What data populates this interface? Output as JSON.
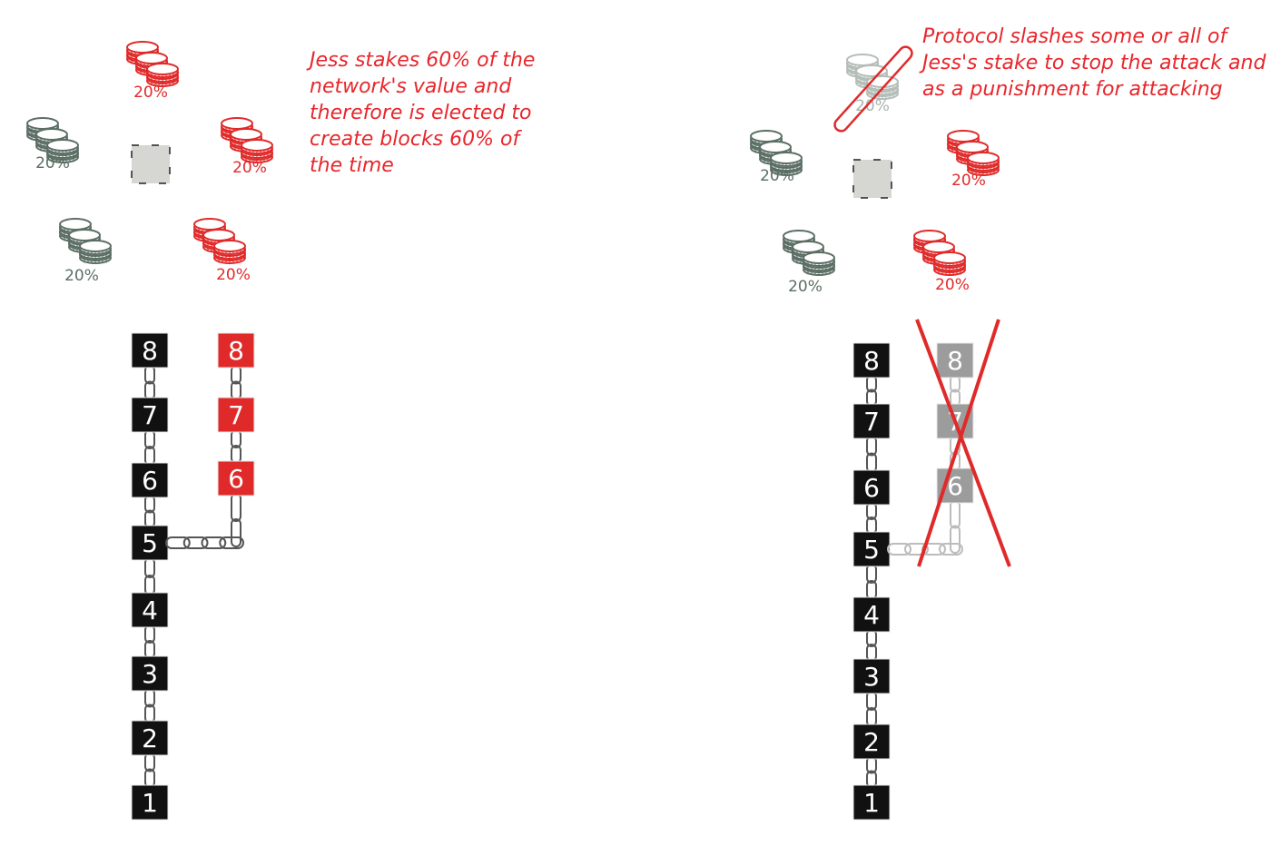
{
  "colors": {
    "attacker": "#e02a2a",
    "honest": "#5b6e64",
    "block": "#111111",
    "slashed": "#9c9c9c",
    "slashed_link": "#bcbcbc",
    "proposer": "#d6d6d2"
  },
  "icons": {
    "coin_stack": "coin-stack-icon",
    "chain_link": "chain-link-icon",
    "proposer": "dashed-square-icon",
    "cross": "red-x-mark"
  },
  "panels": [
    {
      "id": "before-slash",
      "caption": [
        "Jess stakes 60% of the",
        "network's value and",
        "therefore is elected to",
        "create blocks 60% of",
        "the time"
      ],
      "stakes": [
        {
          "owner": "attacker",
          "label": "20%"
        },
        {
          "owner": "attacker",
          "label": "20%"
        },
        {
          "owner": "attacker",
          "label": "20%"
        },
        {
          "owner": "honest",
          "label": "20%"
        },
        {
          "owner": "honest",
          "label": "20%"
        }
      ],
      "main_chain": [
        "1",
        "2",
        "3",
        "4",
        "5",
        "6",
        "7",
        "8"
      ],
      "fork_chain": [
        "6",
        "7",
        "8"
      ],
      "fork_from": "5",
      "fork_state": "attacking"
    },
    {
      "id": "after-slash",
      "caption": [
        "Protocol slashes some or all of",
        "Jess's stake to stop the attack and",
        "as a punishment for attacking"
      ],
      "stakes": [
        {
          "owner": "attacker",
          "label": "20%",
          "slashed": true
        },
        {
          "owner": "attacker",
          "label": "20%"
        },
        {
          "owner": "attacker",
          "label": "20%"
        },
        {
          "owner": "honest",
          "label": "20%"
        },
        {
          "owner": "honest",
          "label": "20%"
        }
      ],
      "main_chain": [
        "1",
        "2",
        "3",
        "4",
        "5",
        "6",
        "7",
        "8"
      ],
      "fork_chain": [
        "6",
        "7",
        "8"
      ],
      "fork_from": "5",
      "fork_state": "slashed"
    }
  ]
}
